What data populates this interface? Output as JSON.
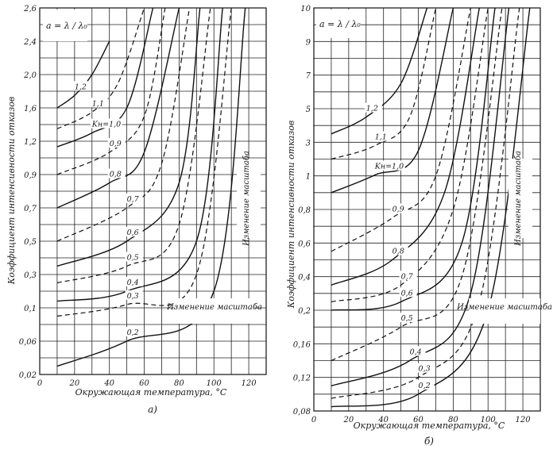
{
  "chart_data": [
    {
      "type": "line",
      "panel_caption": "а)",
      "formula": "a = λ / λ₀",
      "xlabel": "Окружающая температура, °C",
      "ylabel": "Коэффициент интенсивности отказов",
      "x_ticks": [
        "0",
        "20",
        "40",
        "60",
        "80",
        "100",
        "120"
      ],
      "y_ticks": [
        "0,02",
        "0,06",
        "0,1",
        "0,3",
        "0,5",
        "0,7",
        "0,9",
        "1,2",
        "1,6",
        "2,0",
        "2,4",
        "2,6"
      ],
      "xlim": [
        0,
        130
      ],
      "annotation": "Изменение масштаба",
      "series": [
        {
          "name": "1,2",
          "style": "solid",
          "x": [
            10,
            20,
            30,
            40
          ],
          "y": [
            1.6,
            1.75,
            2.0,
            2.4
          ]
        },
        {
          "name": "1,1",
          "style": "dashed",
          "x": [
            10,
            30,
            45,
            60
          ],
          "y": [
            1.35,
            1.55,
            1.9,
            2.6
          ]
        },
        {
          "name": "Kн=1,0",
          "style": "solid",
          "x": [
            10,
            30,
            50,
            65
          ],
          "y": [
            1.15,
            1.3,
            1.6,
            2.6
          ]
        },
        {
          "name": "0,9",
          "style": "dashed",
          "x": [
            10,
            40,
            60,
            72
          ],
          "y": [
            0.9,
            1.1,
            1.5,
            2.6
          ]
        },
        {
          "name": "0,8",
          "style": "solid",
          "x": [
            10,
            40,
            60,
            80
          ],
          "y": [
            0.7,
            0.85,
            1.1,
            2.6
          ]
        },
        {
          "name": "0,7",
          "style": "dashed",
          "x": [
            10,
            50,
            70,
            86
          ],
          "y": [
            0.5,
            0.7,
            1.0,
            2.6
          ]
        },
        {
          "name": "0,6",
          "style": "solid",
          "x": [
            10,
            50,
            80,
            92
          ],
          "y": [
            0.35,
            0.5,
            0.85,
            2.6
          ]
        },
        {
          "name": "0,5",
          "style": "dashed",
          "x": [
            10,
            50,
            80,
            98
          ],
          "y": [
            0.25,
            0.35,
            0.6,
            2.6
          ]
        },
        {
          "name": "0,4",
          "style": "solid",
          "x": [
            10,
            50,
            90,
            105
          ],
          "y": [
            0.14,
            0.2,
            0.5,
            2.6
          ]
        },
        {
          "name": "0,3",
          "style": "dashed",
          "x": [
            10,
            50,
            90,
            110
          ],
          "y": [
            0.09,
            0.12,
            0.3,
            2.6
          ]
        },
        {
          "name": "0,2",
          "style": "solid",
          "x": [
            10,
            50,
            100,
            118
          ],
          "y": [
            0.03,
            0.06,
            0.2,
            2.6
          ]
        }
      ]
    },
    {
      "type": "line",
      "panel_caption": "б)",
      "formula": "a = λ / λ₀",
      "xlabel": "Окружающая температура, °C",
      "ylabel": "Коэффициент интенсивности отказов",
      "x_ticks": [
        "0",
        "20",
        "40",
        "60",
        "80",
        "100",
        "120"
      ],
      "y_ticks": [
        "0,08",
        "0,12",
        "0,16",
        "0,2",
        "0,4",
        "0,6",
        "0,8",
        "1",
        "3",
        "5",
        "7",
        "9",
        "10"
      ],
      "xlim": [
        0,
        130
      ],
      "annotation": "Изменение масштаба",
      "series": [
        {
          "name": "1,2",
          "style": "solid",
          "x": [
            10,
            30,
            50,
            65
          ],
          "y": [
            3.5,
            4.5,
            6.5,
            10
          ]
        },
        {
          "name": "1,1",
          "style": "dashed",
          "x": [
            10,
            35,
            55,
            70
          ],
          "y": [
            2.0,
            2.8,
            4.5,
            10
          ]
        },
        {
          "name": "Kн=1,0",
          "style": "solid",
          "x": [
            10,
            35,
            60,
            80
          ],
          "y": [
            0.9,
            1.05,
            2.5,
            10
          ]
        },
        {
          "name": "0,9",
          "style": "dashed",
          "x": [
            10,
            45,
            70,
            90
          ],
          "y": [
            0.55,
            0.75,
            1.0,
            10
          ]
        },
        {
          "name": "0,8",
          "style": "solid",
          "x": [
            10,
            45,
            75,
            95
          ],
          "y": [
            0.35,
            0.5,
            0.9,
            10
          ]
        },
        {
          "name": "0,7",
          "style": "dashed",
          "x": [
            10,
            50,
            80,
            100
          ],
          "y": [
            0.25,
            0.35,
            0.8,
            10
          ]
        },
        {
          "name": "0,6",
          "style": "solid",
          "x": [
            10,
            50,
            85,
            104
          ],
          "y": [
            0.2,
            0.25,
            0.6,
            10
          ]
        },
        {
          "name": "0,5",
          "style": "dashed",
          "x": [
            10,
            50,
            85,
            108
          ],
          "y": [
            0.14,
            0.18,
            0.4,
            10
          ]
        },
        {
          "name": "0,4",
          "style": "solid",
          "x": [
            10,
            55,
            90,
            112
          ],
          "y": [
            0.11,
            0.14,
            0.3,
            10
          ]
        },
        {
          "name": "0,3",
          "style": "dashed",
          "x": [
            10,
            60,
            95,
            118
          ],
          "y": [
            0.095,
            0.12,
            0.25,
            10
          ]
        },
        {
          "name": "0,2",
          "style": "solid",
          "x": [
            10,
            60,
            100,
            124
          ],
          "y": [
            0.085,
            0.1,
            0.2,
            10
          ]
        }
      ]
    }
  ]
}
